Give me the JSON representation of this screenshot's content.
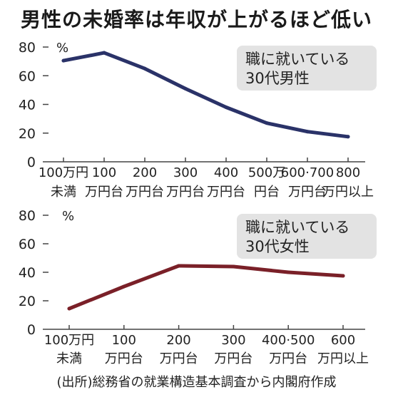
{
  "title": "男性の未婚率は年収が上がるほど低い",
  "source": "(出所)総務省の就業構造基本調査から内閣府作成",
  "chart_data": [
    {
      "type": "line",
      "unit_label": "%",
      "label_lines": [
        "職に就いている",
        "30代男性"
      ],
      "ylim": [
        0,
        80
      ],
      "yticks": [
        0,
        20,
        40,
        60,
        80
      ],
      "categories": [
        [
          "100万円",
          "未満"
        ],
        [
          "100",
          "万円台"
        ],
        [
          "200",
          "万円台"
        ],
        [
          "300",
          "万円台"
        ],
        [
          "400",
          "万円台"
        ],
        [
          "500万",
          "円台"
        ],
        [
          "600·700",
          "万円台"
        ],
        [
          "800",
          "万円以上"
        ]
      ],
      "values": [
        70.5,
        76,
        65,
        51,
        38,
        27,
        21,
        17.5
      ],
      "color": "#2a3268",
      "grid": false
    },
    {
      "type": "line",
      "unit_label": "%",
      "label_lines": [
        "職に就いている",
        "30代女性"
      ],
      "ylim": [
        0,
        80
      ],
      "yticks": [
        0,
        20,
        40,
        60,
        80
      ],
      "categories": [
        [
          "100万円",
          "未満"
        ],
        [
          "100",
          "万円台"
        ],
        [
          "200",
          "万円台"
        ],
        [
          "300",
          "万円台"
        ],
        [
          "400·500",
          "万円台"
        ],
        [
          "600",
          "万円以上"
        ]
      ],
      "values": [
        14.5,
        30,
        44.5,
        44,
        40,
        37.5
      ],
      "color": "#7a2028",
      "grid": false
    }
  ]
}
